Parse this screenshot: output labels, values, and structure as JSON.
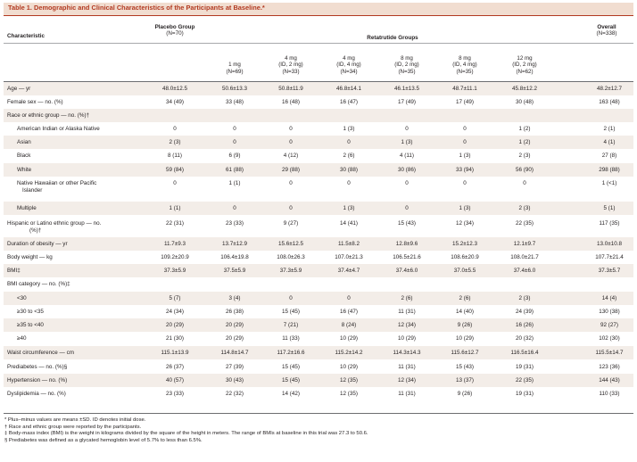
{
  "table": {
    "title": "Table 1. Demographic and Clinical Characteristics of the Participants at Baseline.*",
    "headers": {
      "characteristic": "Characteristic",
      "placebo_label": "Placebo Group",
      "placebo_n": "(N=70)",
      "retatrutide_label": "Retatrutide Groups",
      "overall_label": "Overall",
      "overall_n": "(N=338)",
      "dose_groups": [
        {
          "dose": "1 mg",
          "id": "",
          "n": "(N=69)"
        },
        {
          "dose": "4 mg",
          "id": "(ID, 2 mg)",
          "n": "(N=33)"
        },
        {
          "dose": "4 mg",
          "id": "(ID, 4 mg)",
          "n": "(N=34)"
        },
        {
          "dose": "8 mg",
          "id": "(ID, 2 mg)",
          "n": "(N=35)"
        },
        {
          "dose": "8 mg",
          "id": "(ID, 4 mg)",
          "n": "(N=35)"
        },
        {
          "dose": "12 mg",
          "id": "(ID, 2 mg)",
          "n": "(N=62)"
        }
      ]
    },
    "rows": [
      {
        "label": "Age — yr",
        "indent": 0,
        "values": [
          "48.0±12.5",
          "50.6±13.3",
          "50.8±11.9",
          "46.8±14.1",
          "46.1±13.5",
          "48.7±11.1",
          "45.8±12.2",
          "48.2±12.7"
        ]
      },
      {
        "label": "Female sex — no. (%)",
        "indent": 0,
        "values": [
          "34 (49)",
          "33 (48)",
          "16 (48)",
          "16 (47)",
          "17 (49)",
          "17 (49)",
          "30 (48)",
          "163 (48)"
        ]
      },
      {
        "label": "Race or ethnic group — no. (%)†",
        "indent": 0,
        "values": [
          "",
          "",
          "",
          "",
          "",
          "",
          "",
          ""
        ]
      },
      {
        "label": "American Indian or Alaska Native",
        "indent": 1,
        "values": [
          "0",
          "0",
          "0",
          "1 (3)",
          "0",
          "0",
          "1 (2)",
          "2 (1)"
        ]
      },
      {
        "label": "Asian",
        "indent": 1,
        "values": [
          "2 (3)",
          "0",
          "0",
          "0",
          "1 (3)",
          "0",
          "1 (2)",
          "4 (1)"
        ]
      },
      {
        "label": "Black",
        "indent": 1,
        "values": [
          "8 (11)",
          "6 (9)",
          "4 (12)",
          "2 (6)",
          "4 (11)",
          "1 (3)",
          "2 (3)",
          "27 (8)"
        ]
      },
      {
        "label": "White",
        "indent": 1,
        "values": [
          "59 (84)",
          "61 (88)",
          "29 (88)",
          "30 (88)",
          "30 (86)",
          "33 (94)",
          "56 (90)",
          "298 (88)"
        ]
      },
      {
        "label": "Native Hawaiian or other Pacific",
        "label2": "Islander",
        "indent": 1,
        "values": [
          "0",
          "1 (1)",
          "0",
          "0",
          "0",
          "0",
          "0",
          "1 (<1)"
        ]
      },
      {
        "label": "Multiple",
        "indent": 1,
        "values": [
          "1 (1)",
          "0",
          "0",
          "1 (3)",
          "0",
          "1 (3)",
          "2 (3)",
          "5 (1)"
        ]
      },
      {
        "label": "Hispanic or Latino ethnic group — no.",
        "label2": "(%)†",
        "indent": 0,
        "values": [
          "22 (31)",
          "23 (33)",
          "9 (27)",
          "14 (41)",
          "15 (43)",
          "12 (34)",
          "22 (35)",
          "117 (35)"
        ]
      },
      {
        "label": "Duration of obesity — yr",
        "indent": 0,
        "values": [
          "11.7±9.3",
          "13.7±12.9",
          "15.6±12.5",
          "11.5±8.2",
          "12.8±9.6",
          "15.2±12.3",
          "12.1±9.7",
          "13.0±10.8"
        ]
      },
      {
        "label": "Body weight — kg",
        "indent": 0,
        "values": [
          "109.2±20.9",
          "106.4±19.8",
          "108.0±26.3",
          "107.0±21.3",
          "106.5±21.6",
          "108.6±20.9",
          "108.0±21.7",
          "107.7±21.4"
        ]
      },
      {
        "label": "BMI‡",
        "indent": 0,
        "values": [
          "37.3±5.9",
          "37.5±5.9",
          "37.3±5.9",
          "37.4±4.7",
          "37.4±6.0",
          "37.0±5.5",
          "37.4±6.0",
          "37.3±5.7"
        ]
      },
      {
        "label": "BMI category — no. (%)‡",
        "indent": 0,
        "values": [
          "",
          "",
          "",
          "",
          "",
          "",
          "",
          ""
        ]
      },
      {
        "label": "<30",
        "indent": 1,
        "values": [
          "5 (7)",
          "3 (4)",
          "0",
          "0",
          "2 (6)",
          "2 (6)",
          "2 (3)",
          "14 (4)"
        ]
      },
      {
        "label": "≥30 to <35",
        "indent": 1,
        "values": [
          "24 (34)",
          "26 (38)",
          "15 (45)",
          "16 (47)",
          "11 (31)",
          "14 (40)",
          "24 (39)",
          "130 (38)"
        ]
      },
      {
        "label": "≥35 to <40",
        "indent": 1,
        "values": [
          "20 (29)",
          "20 (29)",
          "7 (21)",
          "8 (24)",
          "12 (34)",
          "9 (26)",
          "16 (26)",
          "92 (27)"
        ]
      },
      {
        "label": "≥40",
        "indent": 1,
        "values": [
          "21 (30)",
          "20 (29)",
          "11 (33)",
          "10 (29)",
          "10 (29)",
          "10 (29)",
          "20 (32)",
          "102 (30)"
        ]
      },
      {
        "label": "Waist circumference — cm",
        "indent": 0,
        "values": [
          "115.1±13.9",
          "114.8±14.7",
          "117.2±16.6",
          "115.2±14.2",
          "114.3±14.3",
          "115.6±12.7",
          "116.5±16.4",
          "115.5±14.7"
        ]
      },
      {
        "label": "Prediabetes — no. (%)§",
        "indent": 0,
        "values": [
          "26 (37)",
          "27 (39)",
          "15 (45)",
          "10 (29)",
          "11 (31)",
          "15 (43)",
          "19 (31)",
          "123 (36)"
        ]
      },
      {
        "label": "Hypertension — no. (%)",
        "indent": 0,
        "values": [
          "40 (57)",
          "30 (43)",
          "15 (45)",
          "12 (35)",
          "12 (34)",
          "13 (37)",
          "22 (35)",
          "144 (43)"
        ]
      },
      {
        "label": "Dyslipidemia — no. (%)",
        "indent": 0,
        "values": [
          "23 (33)",
          "22 (32)",
          "14 (42)",
          "12 (35)",
          "11 (31)",
          "9 (26)",
          "19 (31)",
          "110 (33)"
        ]
      }
    ],
    "footnotes": [
      "* Plus–minus values are means ±SD. ID denotes initial dose.",
      "† Race and ethnic group were reported by the participants.",
      "‡ Body-mass index (BMI) is the weight in kilograms divided by the square of the height in meters. The range of BMIs at baseline in this trial was 27.3 to 50.6.",
      "§ Prediabetes was defined as a glycated hemoglobin level of 5.7% to less than 6.5%."
    ]
  },
  "colors": {
    "title_text": "#b23a21",
    "title_bg": "#f1ddd0",
    "stripe_bg": "#f3ede8"
  }
}
